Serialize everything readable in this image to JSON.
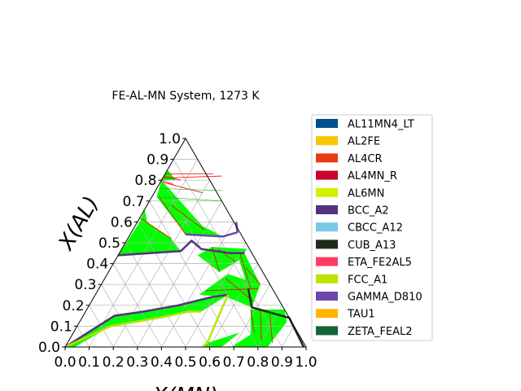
{
  "chart_data": {
    "type": "ternary-phase-diagram",
    "title": "FE-AL-MN System, 1273 K",
    "xlabel": "X(MN)",
    "ylabel": "X(AL)",
    "xlim": [
      0,
      1
    ],
    "ylim": [
      0,
      1
    ],
    "x_ticks": [
      "0.0",
      "0.1",
      "0.2",
      "0.3",
      "0.4",
      "0.5",
      "0.6",
      "0.7",
      "0.8",
      "0.9",
      "1.0"
    ],
    "y_ticks": [
      "0.0",
      "0.1",
      "0.2",
      "0.3",
      "0.4",
      "0.5",
      "0.6",
      "0.7",
      "0.8",
      "0.9",
      "1.0"
    ],
    "grid": true,
    "legend_position": "right",
    "legend": [
      {
        "name": "AL11MN4_LT",
        "color": "#00508c"
      },
      {
        "name": "AL2FE",
        "color": "#f5c800"
      },
      {
        "name": "AL4CR",
        "color": "#e83c14"
      },
      {
        "name": "AL4MN_R",
        "color": "#c8002d"
      },
      {
        "name": "AL6MN",
        "color": "#d2f000"
      },
      {
        "name": "BCC_A2",
        "color": "#55327d"
      },
      {
        "name": "CBCC_A12",
        "color": "#78c8e6"
      },
      {
        "name": "CUB_A13",
        "color": "#1e2d19"
      },
      {
        "name": "ETA_FE2AL5",
        "color": "#ff3c64"
      },
      {
        "name": "FCC_A1",
        "color": "#bee100"
      },
      {
        "name": "GAMMA_D810",
        "color": "#6e46aa"
      },
      {
        "name": "TAU1",
        "color": "#ffb400"
      },
      {
        "name": "ZETA_FEAL2",
        "color": "#146437"
      }
    ],
    "two_phase_regions": [
      {
        "points": [
          [
            0.0,
            0.8
          ],
          [
            0.06,
            0.8
          ],
          [
            0.0,
            0.85
          ]
        ]
      },
      {
        "points": [
          [
            0.0,
            0.66
          ],
          [
            0.01,
            0.6
          ],
          [
            0.0,
            0.44
          ],
          [
            0.25,
            0.46
          ],
          [
            0.18,
            0.52
          ],
          [
            0.04,
            0.6
          ]
        ]
      },
      {
        "points": [
          [
            0.0,
            0.8
          ],
          [
            0.02,
            0.72
          ],
          [
            0.23,
            0.54
          ],
          [
            0.39,
            0.53
          ],
          [
            0.28,
            0.58
          ]
        ]
      },
      {
        "points": [
          [
            0.33,
            0.44
          ],
          [
            0.37,
            0.48
          ],
          [
            0.52,
            0.47
          ],
          [
            0.51,
            0.41
          ],
          [
            0.46,
            0.36
          ]
        ]
      },
      {
        "points": [
          [
            0.48,
            0.46
          ],
          [
            0.51,
            0.46
          ],
          [
            0.66,
            0.3
          ],
          [
            0.62,
            0.28
          ]
        ]
      },
      {
        "points": [
          [
            0.0,
            0.0
          ],
          [
            0.04,
            0.0
          ],
          [
            0.14,
            0.1
          ],
          [
            0.32,
            0.14
          ],
          [
            0.43,
            0.17
          ],
          [
            0.48,
            0.17
          ],
          [
            0.55,
            0.25
          ],
          [
            0.49,
            0.24
          ],
          [
            0.37,
            0.2
          ],
          [
            0.24,
            0.17
          ],
          [
            0.13,
            0.15
          ]
        ]
      },
      {
        "points": [
          [
            0.43,
            0.25
          ],
          [
            0.5,
            0.35
          ],
          [
            0.66,
            0.3
          ],
          [
            0.68,
            0.19
          ],
          [
            0.55,
            0.24
          ]
        ]
      },
      {
        "points": [
          [
            0.68,
            0.18
          ],
          [
            0.82,
            0.18
          ],
          [
            0.86,
            0.12
          ],
          [
            0.84,
            0.0
          ],
          [
            0.69,
            0.0
          ],
          [
            0.74,
            0.06
          ]
        ]
      },
      {
        "points": [
          [
            0.57,
            0.0
          ],
          [
            0.65,
            0.0
          ],
          [
            0.69,
            0.07
          ],
          [
            0.58,
            0.02
          ]
        ]
      }
    ],
    "phase_boundaries": [
      {
        "phase": "BCC_A2",
        "points": [
          [
            0.0,
            0.44
          ],
          [
            0.25,
            0.46
          ],
          [
            0.27,
            0.51
          ],
          [
            0.33,
            0.47
          ],
          [
            0.46,
            0.45
          ],
          [
            0.52,
            0.45
          ]
        ]
      },
      {
        "phase": "BCC_A2",
        "points": [
          [
            0.0,
            0.0
          ],
          [
            0.13,
            0.15
          ],
          [
            0.24,
            0.17
          ],
          [
            0.37,
            0.2
          ],
          [
            0.49,
            0.24
          ],
          [
            0.55,
            0.25
          ]
        ]
      },
      {
        "phase": "GAMMA_D810",
        "points": [
          [
            0.23,
            0.54
          ],
          [
            0.39,
            0.53
          ],
          [
            0.44,
            0.55
          ],
          [
            0.41,
            0.6
          ]
        ]
      },
      {
        "phase": "CUB_A13",
        "points": [
          [
            0.62,
            0.28
          ],
          [
            0.68,
            0.19
          ],
          [
            0.86,
            0.14
          ],
          [
            0.99,
            0.0
          ]
        ]
      },
      {
        "phase": "FCC_A1",
        "points": [
          [
            0.0,
            0.0
          ],
          [
            0.14,
            0.1
          ],
          [
            0.32,
            0.14
          ],
          [
            0.43,
            0.17
          ],
          [
            0.48,
            0.17
          ]
        ]
      },
      {
        "phase": "FCC_A1",
        "points": [
          [
            0.55,
            0.25
          ],
          [
            0.58,
            0.02
          ],
          [
            0.57,
            0.0
          ]
        ]
      }
    ]
  }
}
